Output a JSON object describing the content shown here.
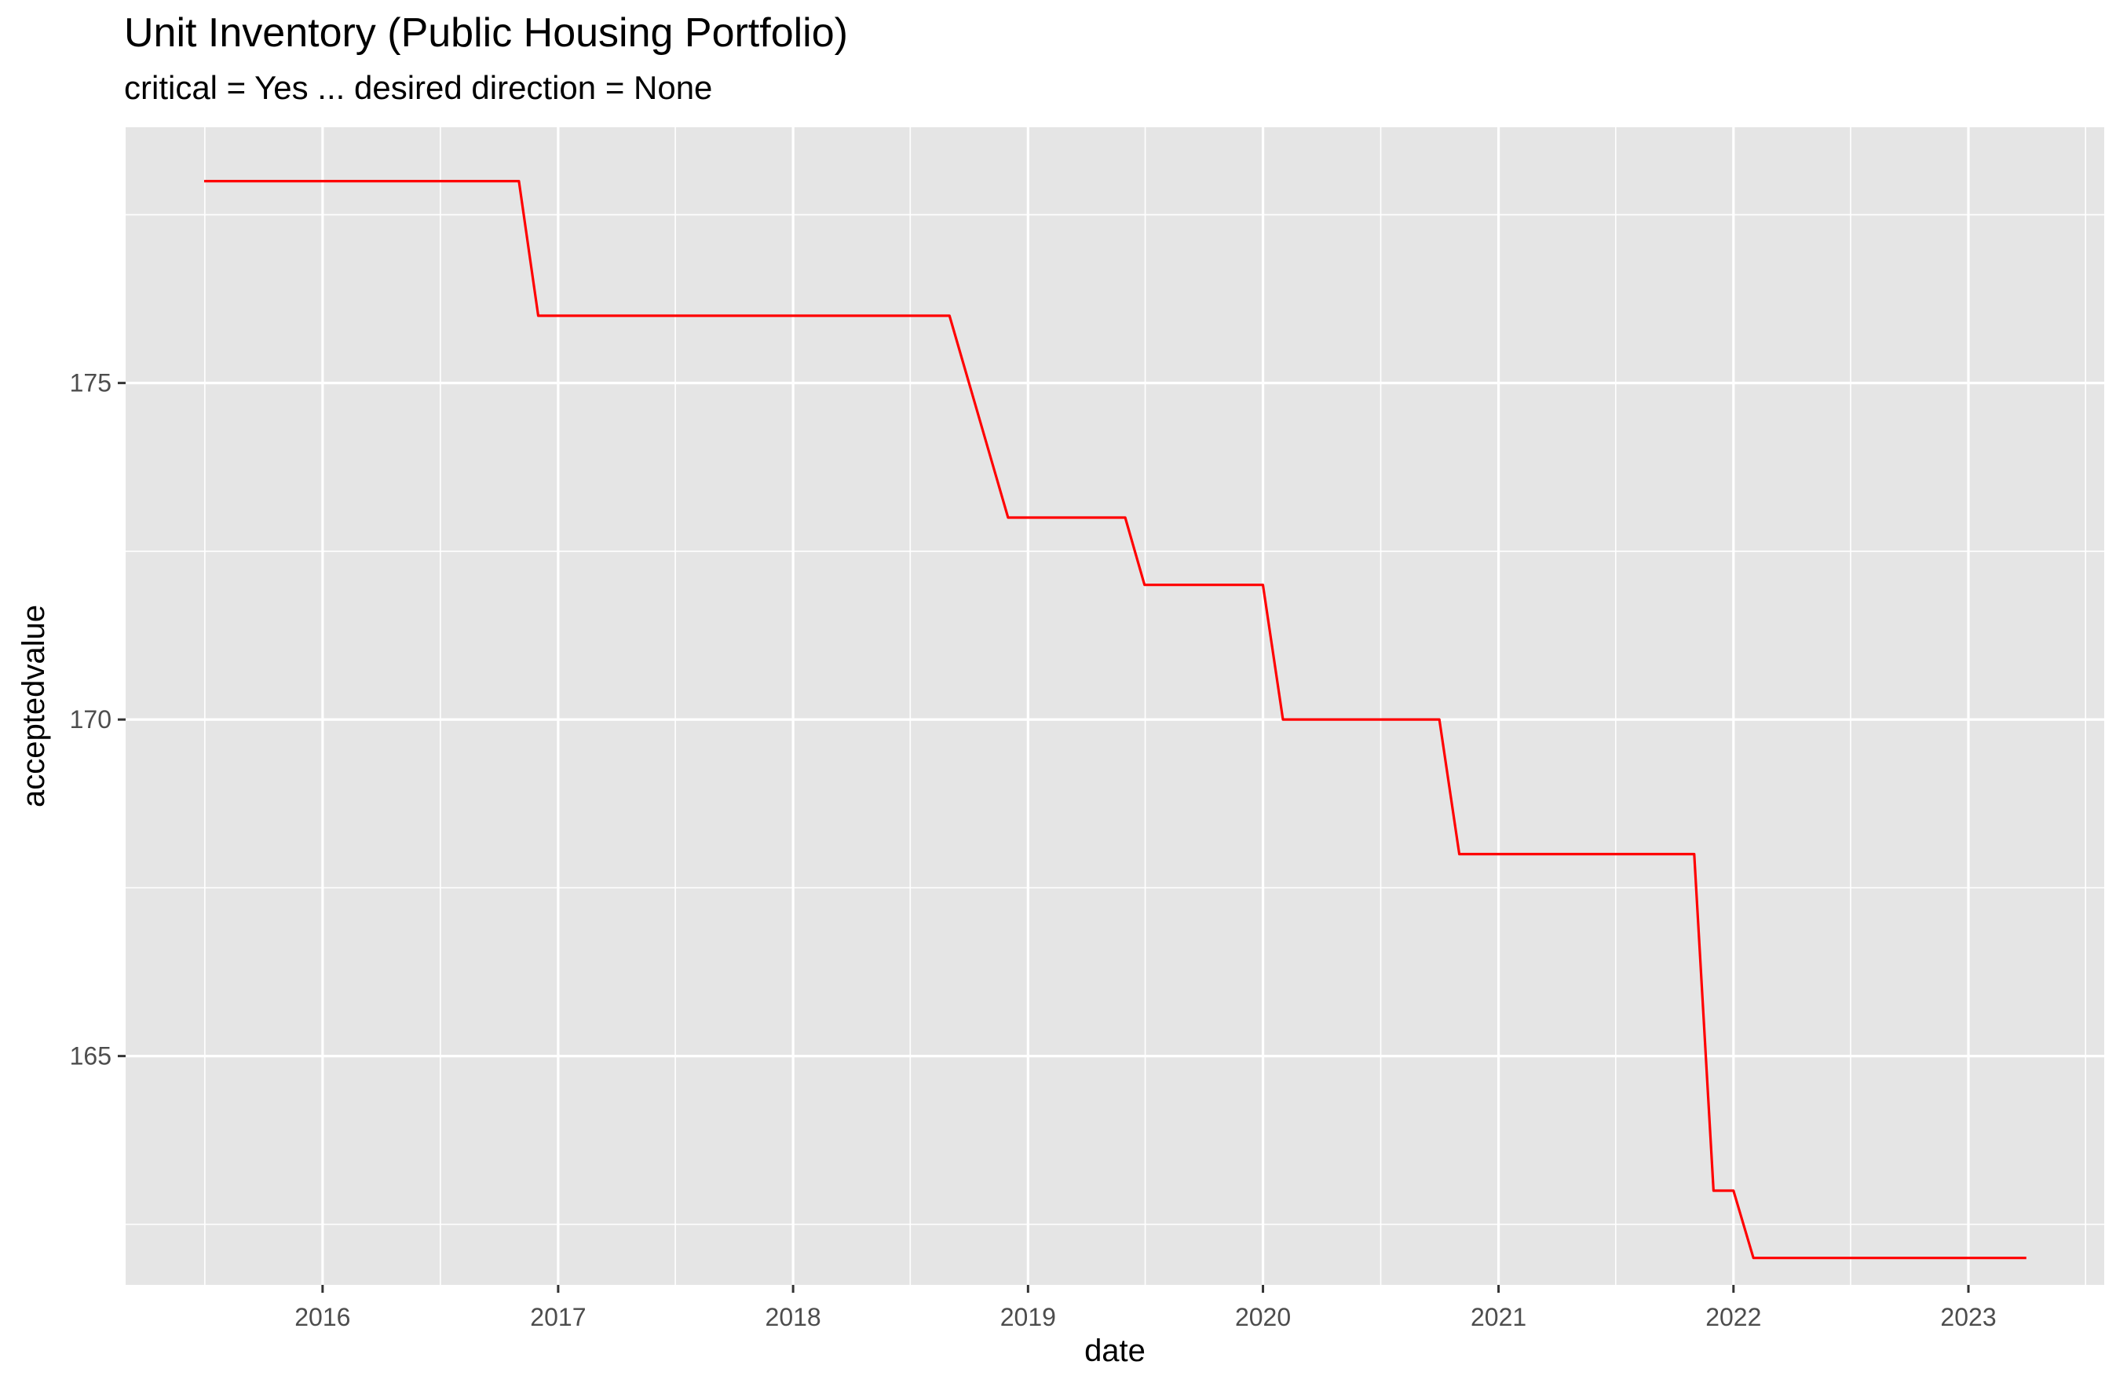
{
  "chart_data": {
    "type": "line",
    "title": "Unit Inventory (Public Housing Portfolio)",
    "subtitle": "critical = Yes ... desired direction = None",
    "xlabel": "date",
    "ylabel": "acceptedvalue",
    "x_ticks": [
      "2016",
      "2017",
      "2018",
      "2019",
      "2020",
      "2021",
      "2022",
      "2023"
    ],
    "y_ticks": [
      165,
      170,
      175
    ],
    "xlim": [
      "2015-03-01",
      "2023-07-31"
    ],
    "ylim": [
      161.6,
      178.8
    ],
    "grid": true,
    "legend": "none",
    "colors": {
      "line": "#ff0000",
      "panel": "#e5e5e5",
      "grid": "#ffffff",
      "tick_text": "#4d4d4d"
    },
    "series": [
      {
        "points": [
          {
            "x": "2015-07-01",
            "y": 178
          },
          {
            "x": "2016-11-01",
            "y": 178
          },
          {
            "x": "2016-12-01",
            "y": 176
          },
          {
            "x": "2018-09-01",
            "y": 176
          },
          {
            "x": "2018-12-01",
            "y": 173
          },
          {
            "x": "2019-06-01",
            "y": 173
          },
          {
            "x": "2019-07-01",
            "y": 172
          },
          {
            "x": "2020-01-01",
            "y": 172
          },
          {
            "x": "2020-02-01",
            "y": 170
          },
          {
            "x": "2020-10-01",
            "y": 170
          },
          {
            "x": "2020-11-01",
            "y": 168
          },
          {
            "x": "2021-11-01",
            "y": 168
          },
          {
            "x": "2021-12-01",
            "y": 163
          },
          {
            "x": "2022-01-01",
            "y": 163
          },
          {
            "x": "2022-02-01",
            "y": 162
          },
          {
            "x": "2023-04-01",
            "y": 162
          }
        ]
      }
    ]
  }
}
